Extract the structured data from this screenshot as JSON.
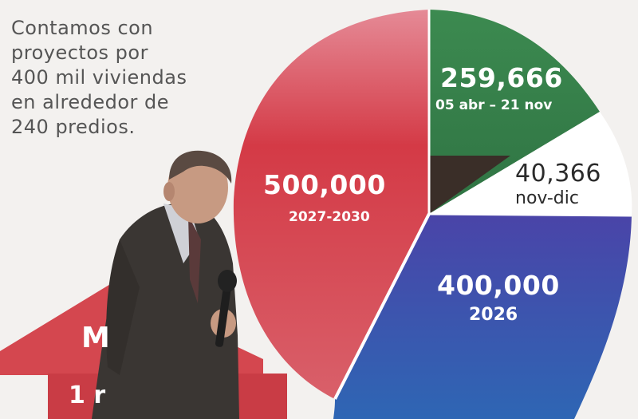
{
  "intro_lines": [
    "Contamos con",
    "proyectos por",
    "400 mil viviendas",
    "en alrededor de",
    "240 predios."
  ],
  "arrow_text": {
    "top": "M",
    "bottom": "1 r"
  },
  "pie": {
    "slices": [
      {
        "value": "500,000",
        "period": "2027-2030",
        "color": "#d63d48"
      },
      {
        "value": "259,666",
        "period": "05 abr – 21 nov",
        "color": "#3e8a52"
      },
      {
        "value": "40,366",
        "period": "nov-dic",
        "color": "#ffffff"
      },
      {
        "value": "400,000",
        "period": "2026",
        "color": "#3a3fa3"
      }
    ]
  },
  "colors": {
    "background": "#f3f1ef",
    "red": "#d63d48",
    "green": "#3e8a52",
    "blue": "#3a3fa3",
    "suit": "#3a3633"
  }
}
